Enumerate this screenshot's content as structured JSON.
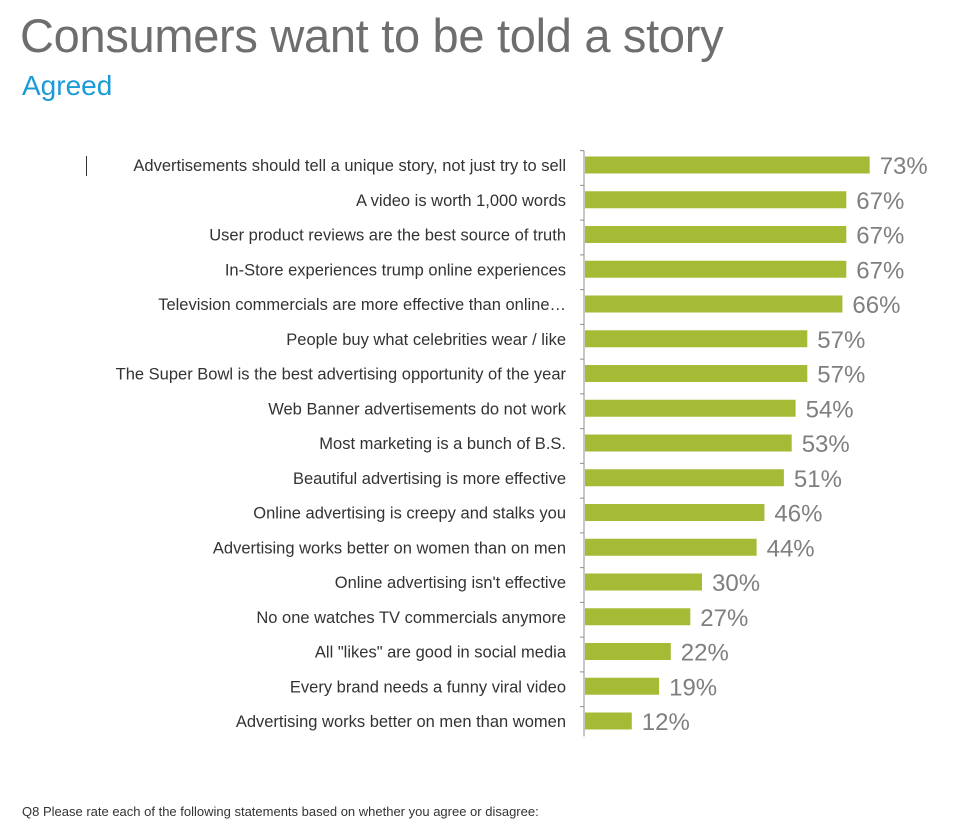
{
  "title": "Consumers want to be told a story",
  "subtitle": "Agreed",
  "footnote": "Q8 Please rate each of the following statements based on whether you agree or disagree:",
  "colors": {
    "bar": "#a6bb35",
    "label_text": "#333333",
    "value_text": "#7f7f7f",
    "title": "#6e6e6e",
    "subtitle": "#1a9ad6",
    "axis": "#8c8c8c"
  },
  "chart_data": {
    "type": "bar",
    "orientation": "horizontal",
    "value_format": "percent",
    "categories": [
      "Advertisements should tell a unique story, not just try to sell",
      "A video is worth 1,000 words",
      "User product reviews are the best source of truth",
      "In-Store experiences trump online experiences",
      "Television commercials are more effective than online…",
      "People buy what celebrities wear / like",
      "The Super Bowl is the best advertising opportunity of the year",
      "Web Banner advertisements do not work",
      "Most marketing is a bunch of B.S.",
      "Beautiful advertising is more effective",
      "Online advertising is creepy and stalks you",
      "Advertising works better on women than on men",
      "Online advertising isn't effective",
      "No one watches TV commercials anymore",
      "All \"likes\" are good in social media",
      "Every brand needs a funny viral video",
      "Advertising works better on men than women"
    ],
    "values": [
      73,
      67,
      67,
      67,
      66,
      57,
      57,
      54,
      53,
      51,
      46,
      44,
      30,
      27,
      22,
      19,
      12
    ],
    "data_labels": [
      "73%",
      "67%",
      "67%",
      "67%",
      "66%",
      "57%",
      "57%",
      "54%",
      "53%",
      "51%",
      "46%",
      "44%",
      "30%",
      "27%",
      "22%",
      "19%",
      "12%"
    ],
    "xlim": [
      0,
      100
    ],
    "grid": false,
    "legend": "none"
  }
}
